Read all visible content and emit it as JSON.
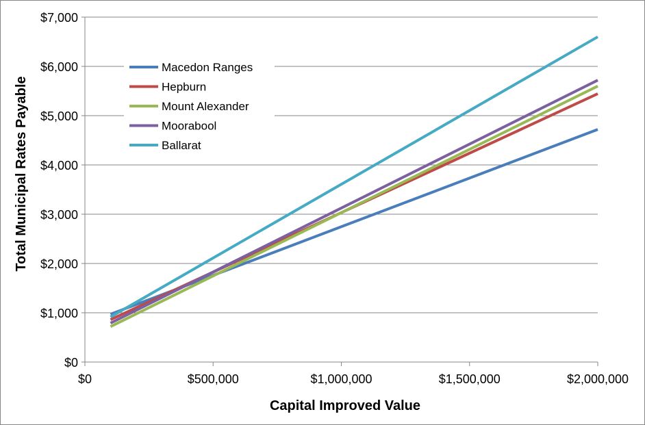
{
  "chart_data": {
    "type": "line",
    "title": "",
    "xlabel": "Capital Improved Value",
    "ylabel": "Total Municipal Rates Payable",
    "xlim": [
      0,
      2000000
    ],
    "ylim": [
      0,
      7000
    ],
    "x_ticks": [
      0,
      500000,
      1000000,
      1500000,
      2000000
    ],
    "x_tick_labels": [
      "$0",
      "$500,000",
      "$1,000,000",
      "$1,500,000",
      "$2,000,000"
    ],
    "y_ticks": [
      0,
      1000,
      2000,
      3000,
      4000,
      5000,
      6000,
      7000
    ],
    "y_tick_labels": [
      "$0",
      "$1,000",
      "$2,000",
      "$3,000",
      "$4,000",
      "$5,000",
      "$6,000",
      "$7,000"
    ],
    "grid": "horizontal",
    "legend_position": "top-left",
    "series": [
      {
        "name": "Macedon Ranges",
        "color": "#4a7ebb",
        "x": [
          100000,
          2000000
        ],
        "y": [
          970,
          4720
        ]
      },
      {
        "name": "Hepburn",
        "color": "#be4b48",
        "x": [
          100000,
          2000000
        ],
        "y": [
          860,
          5445
        ]
      },
      {
        "name": "Mount Alexander",
        "color": "#98b954",
        "x": [
          100000,
          2000000
        ],
        "y": [
          720,
          5600
        ]
      },
      {
        "name": "Moorabool",
        "color": "#7d60a0",
        "x": [
          100000,
          2000000
        ],
        "y": [
          790,
          5720
        ]
      },
      {
        "name": "Ballarat",
        "color": "#46aac5",
        "x": [
          100000,
          2000000
        ],
        "y": [
          915,
          6600
        ]
      }
    ]
  }
}
